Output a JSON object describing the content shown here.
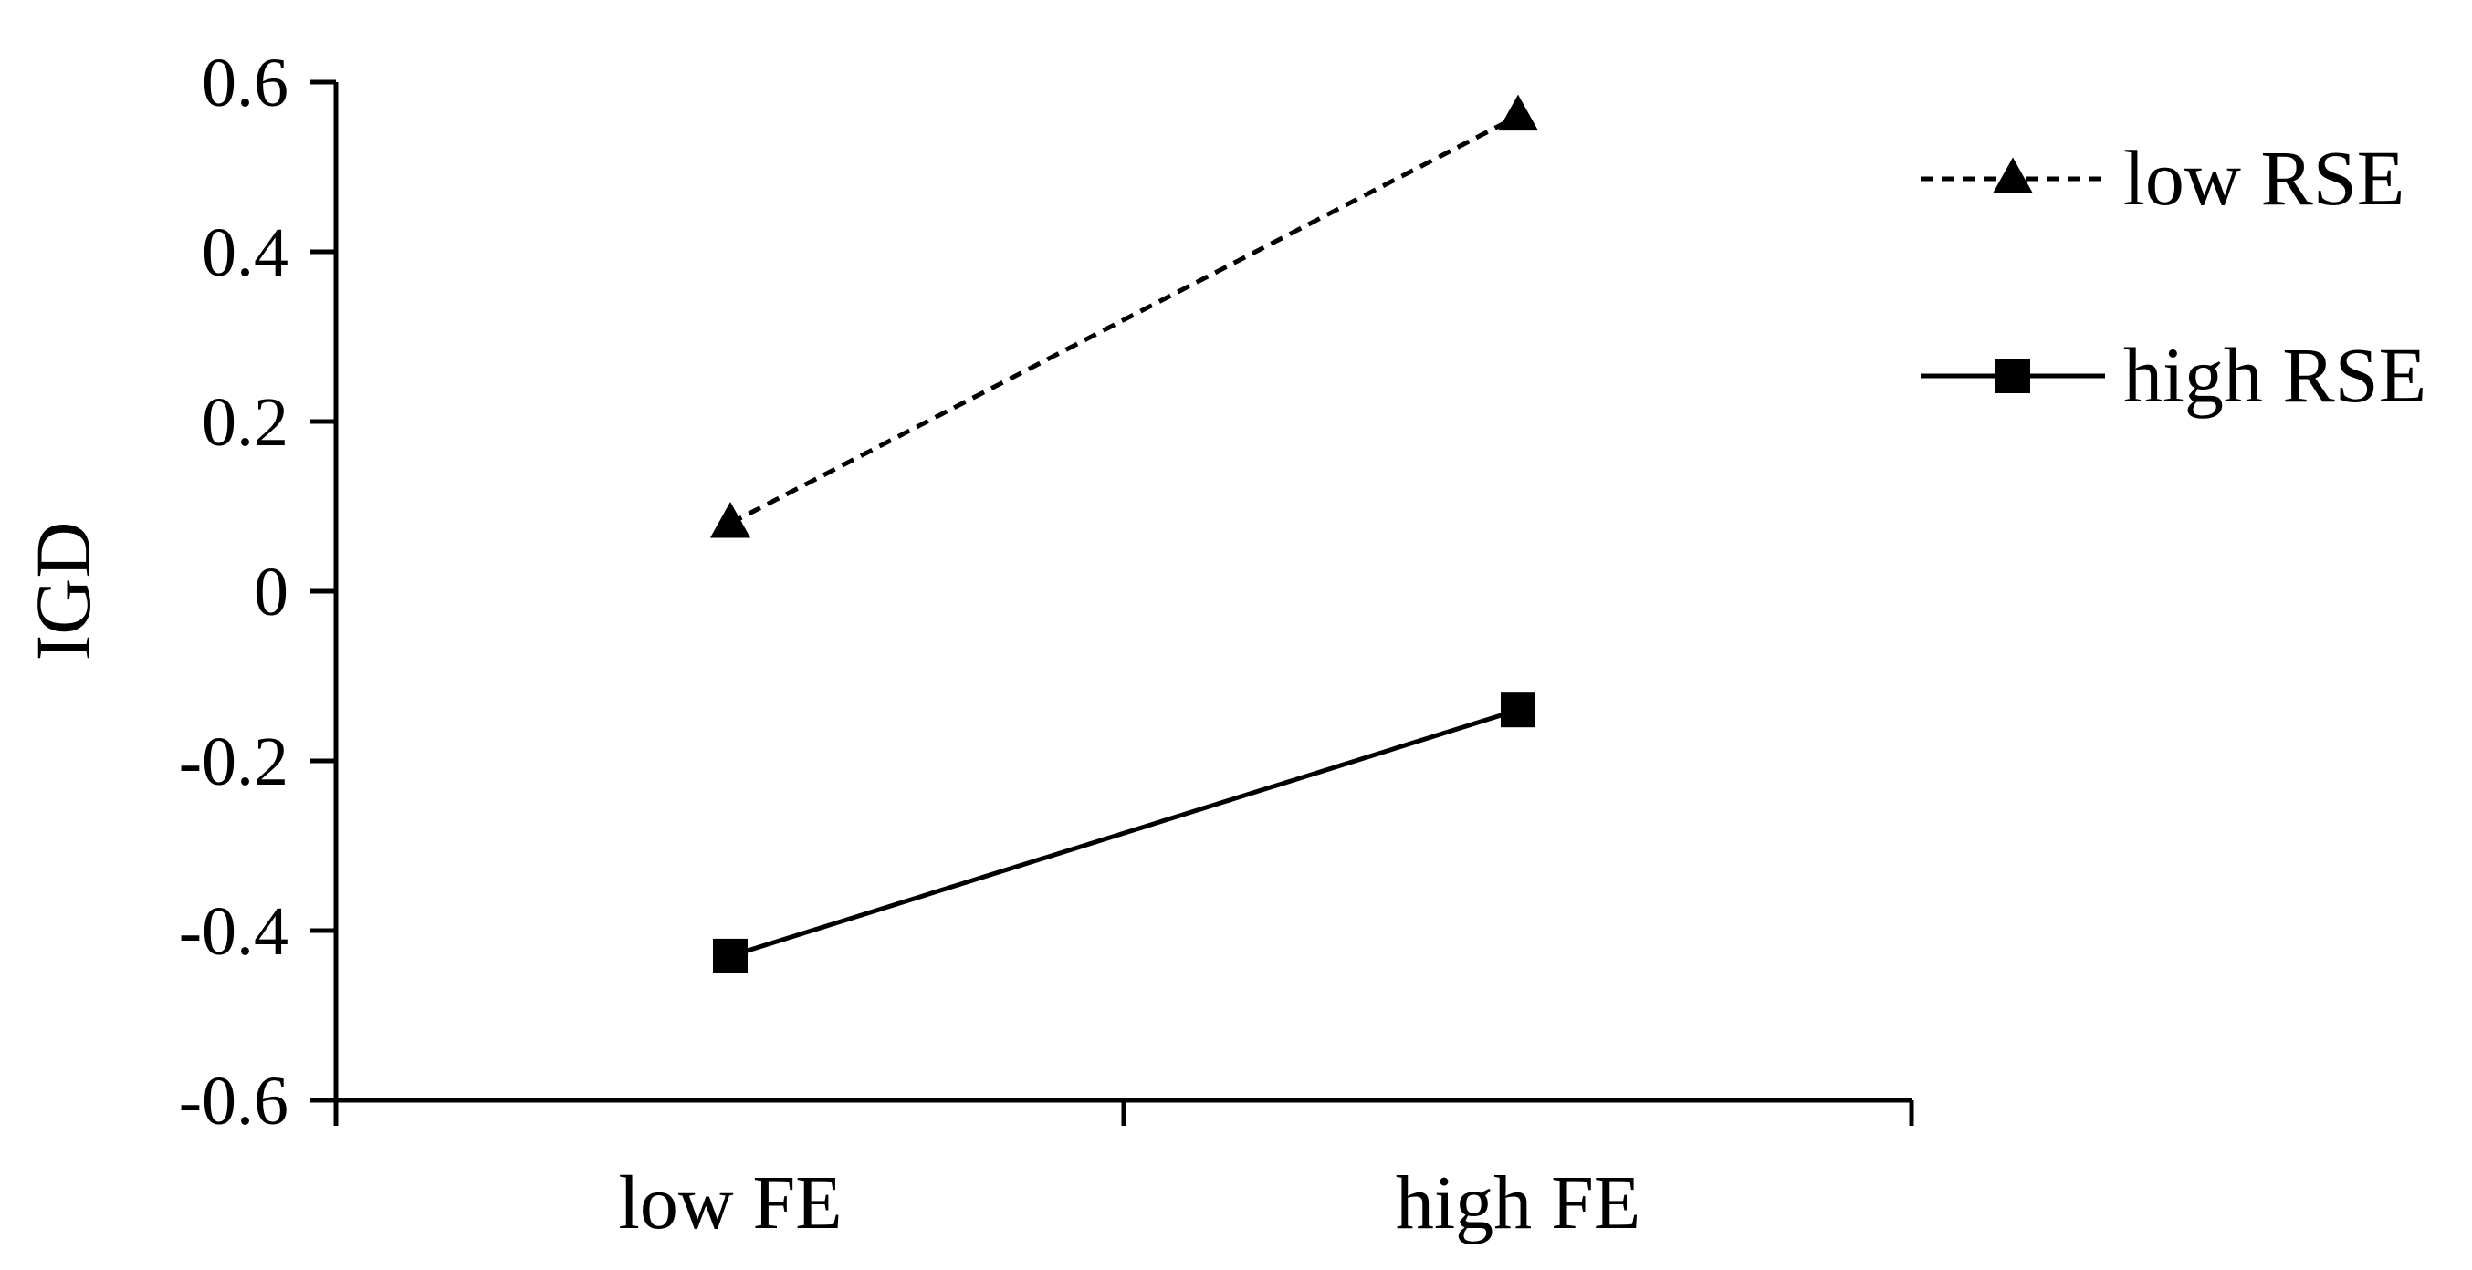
{
  "chart_data": {
    "type": "line",
    "title": "",
    "xlabel": "",
    "ylabel": "IGD",
    "categories": [
      "low FE",
      "high FE"
    ],
    "ylim": [
      -0.6,
      0.6
    ],
    "yticks": [
      0.6,
      0.4,
      0.2,
      0,
      -0.2,
      -0.4,
      -0.6
    ],
    "ytick_labels": [
      "0.6",
      "0.4",
      "0.2",
      "0",
      "-0.2",
      "-0.4",
      "-0.6"
    ],
    "grid": false,
    "legend_position": "right",
    "series": [
      {
        "name": "low RSE",
        "values": [
          0.08,
          0.56
        ],
        "line_style": "dashed",
        "marker": "triangle",
        "color": "#000000"
      },
      {
        "name": "high RSE",
        "values": [
          -0.43,
          -0.14
        ],
        "line_style": "solid",
        "marker": "square",
        "color": "#000000"
      }
    ]
  }
}
